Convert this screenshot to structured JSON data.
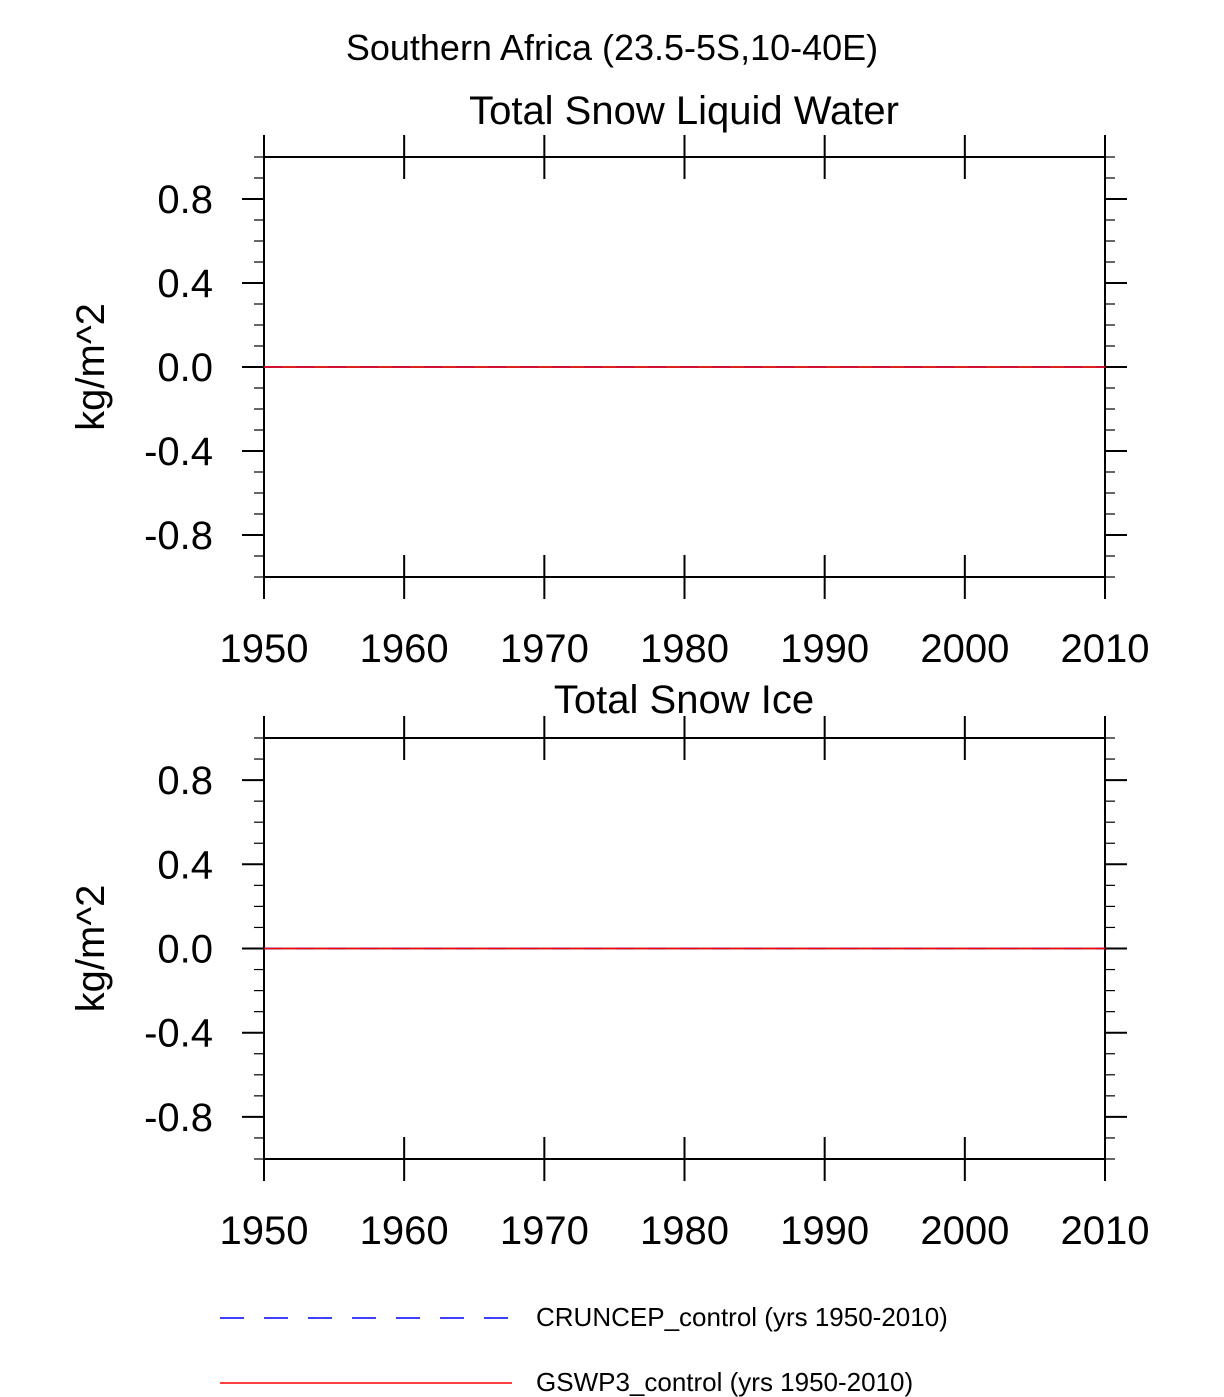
{
  "figure": {
    "suptitle": "Southern Africa (23.5-5S,10-40E)"
  },
  "chart_data": [
    {
      "type": "line",
      "title": "Total Snow Liquid Water",
      "xlabel": "",
      "ylabel": "kg/m^2",
      "xlim": [
        1950,
        2010
      ],
      "ylim": [
        -1.0,
        1.0
      ],
      "x_ticks": [
        1950,
        1960,
        1970,
        1980,
        1990,
        2000,
        2010
      ],
      "x_tick_labels": [
        "1950",
        "1960",
        "1970",
        "1980",
        "1990",
        "2000",
        "2010"
      ],
      "y_ticks": [
        0.8,
        0.4,
        0.0,
        -0.4,
        -0.8
      ],
      "y_tick_labels": [
        "0.8",
        "0.4",
        "0.0",
        "-0.4",
        "-0.8"
      ],
      "grid": false,
      "series": [
        {
          "name": "CRUNCEP_control (yrs 1950-2010)",
          "color": "#0000ff",
          "style": "dashed",
          "x": [
            1950,
            2010
          ],
          "values": [
            0.0,
            0.0
          ]
        },
        {
          "name": "GSWP3_control (yrs 1950-2010)",
          "color": "#ff0000",
          "style": "solid",
          "x": [
            1950,
            2010
          ],
          "values": [
            0.0,
            0.0
          ]
        }
      ]
    },
    {
      "type": "line",
      "title": "Total Snow Ice",
      "xlabel": "",
      "ylabel": "kg/m^2",
      "xlim": [
        1950,
        2010
      ],
      "ylim": [
        -1.0,
        1.0
      ],
      "x_ticks": [
        1950,
        1960,
        1970,
        1980,
        1990,
        2000,
        2010
      ],
      "x_tick_labels": [
        "1950",
        "1960",
        "1970",
        "1980",
        "1990",
        "2000",
        "2010"
      ],
      "y_ticks": [
        0.8,
        0.4,
        0.0,
        -0.4,
        -0.8
      ],
      "y_tick_labels": [
        "0.8",
        "0.4",
        "0.0",
        "-0.4",
        "-0.8"
      ],
      "grid": false,
      "series": [
        {
          "name": "CRUNCEP_control (yrs 1950-2010)",
          "color": "#0000ff",
          "style": "dashed",
          "x": [
            1950,
            2010
          ],
          "values": [
            0.0,
            0.0
          ]
        },
        {
          "name": "GSWP3_control (yrs 1950-2010)",
          "color": "#ff0000",
          "style": "solid",
          "x": [
            1950,
            2010
          ],
          "values": [
            0.0,
            0.0
          ]
        }
      ]
    }
  ],
  "legend": {
    "placement": "bottom",
    "entries": [
      {
        "label": "CRUNCEP_control (yrs 1950-2010)",
        "color": "#0000ff",
        "style": "dashed"
      },
      {
        "label": "GSWP3_control (yrs 1950-2010)",
        "color": "#ff0000",
        "style": "solid"
      }
    ]
  }
}
